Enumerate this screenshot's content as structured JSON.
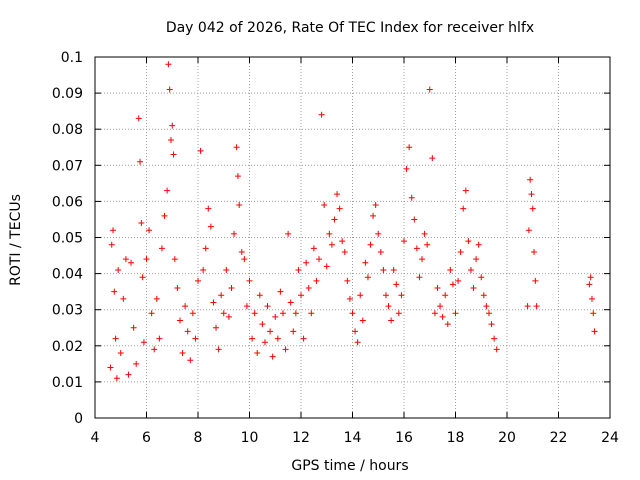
{
  "chart_data": {
    "type": "scatter",
    "title": "Day 042 of 2026, Rate Of TEC Index for receiver hlfx",
    "xlabel": "GPS time / hours",
    "ylabel": "ROTI / TECUs",
    "xlim": [
      4,
      24
    ],
    "ylim": [
      0,
      0.1
    ],
    "x_ticks": [
      4,
      6,
      8,
      10,
      12,
      14,
      16,
      18,
      20,
      22,
      24
    ],
    "x_tick_labels": [
      "4",
      "6",
      "8",
      "10",
      "12",
      "14",
      "16",
      "18",
      "20",
      "22",
      "24"
    ],
    "y_ticks": [
      0,
      0.01,
      0.02,
      0.03,
      0.04,
      0.05,
      0.06,
      0.07,
      0.08,
      0.09,
      0.1
    ],
    "y_tick_labels": [
      "0",
      "0.01",
      "0.02",
      "0.03",
      "0.04",
      "0.05",
      "0.06",
      "0.07",
      "0.08",
      "0.09",
      "0.1"
    ],
    "grid": true,
    "marker": "plus",
    "color": "#ff0000",
    "series": [
      {
        "x": [
          4.6,
          4.65,
          4.7,
          4.75,
          4.8,
          4.85,
          4.9,
          5.0,
          5.1,
          5.2,
          5.3,
          5.4,
          5.5,
          5.6,
          5.7,
          5.75,
          5.8,
          5.85,
          5.9,
          6.0,
          6.1,
          6.2,
          6.3,
          6.4,
          6.5,
          6.6,
          6.7,
          6.8,
          6.85,
          6.9,
          6.95,
          7.0,
          7.05,
          7.1,
          7.2,
          7.3,
          7.4,
          7.5,
          7.6,
          7.7,
          7.8,
          7.9,
          8.0,
          8.1,
          8.2,
          8.3,
          8.4,
          8.5,
          8.6,
          8.7,
          8.8,
          8.9,
          9.0,
          9.1,
          9.2,
          9.3,
          9.4,
          9.5,
          9.55,
          9.6,
          9.7,
          9.8,
          9.9,
          10.0,
          10.1,
          10.2,
          10.3,
          10.4,
          10.5,
          10.6,
          10.7,
          10.8,
          10.9,
          11.0,
          11.1,
          11.2,
          11.3,
          11.4,
          11.5,
          11.6,
          11.7,
          11.8,
          11.9,
          12.0,
          12.1,
          12.2,
          12.3,
          12.4,
          12.5,
          12.6,
          12.7,
          12.8,
          12.9,
          13.0,
          13.1,
          13.2,
          13.3,
          13.4,
          13.5,
          13.6,
          13.7,
          13.8,
          13.9,
          14.0,
          14.1,
          14.2,
          14.3,
          14.4,
          14.5,
          14.6,
          14.7,
          14.8,
          14.9,
          15.0,
          15.1,
          15.2,
          15.3,
          15.4,
          15.5,
          15.6,
          15.7,
          15.8,
          15.9,
          16.0,
          16.1,
          16.2,
          16.3,
          16.4,
          16.5,
          16.6,
          16.7,
          16.8,
          16.9,
          17.0,
          17.1,
          17.2,
          17.3,
          17.4,
          17.5,
          17.6,
          17.7,
          17.8,
          17.9,
          18.0,
          18.1,
          18.2,
          18.3,
          18.4,
          18.5,
          18.6,
          18.7,
          18.8,
          18.9,
          19.0,
          19.1,
          19.2,
          19.3,
          19.4,
          19.5,
          19.6,
          20.8,
          20.85,
          20.9,
          20.95,
          21.0,
          21.05,
          21.1,
          21.15,
          23.2,
          23.25,
          23.3,
          23.35,
          23.4
        ],
        "y": [
          0.014,
          0.048,
          0.052,
          0.035,
          0.022,
          0.011,
          0.041,
          0.018,
          0.033,
          0.044,
          0.012,
          0.043,
          0.025,
          0.015,
          0.083,
          0.071,
          0.054,
          0.039,
          0.021,
          0.044,
          0.052,
          0.029,
          0.019,
          0.033,
          0.022,
          0.047,
          0.056,
          0.063,
          0.098,
          0.091,
          0.077,
          0.081,
          0.073,
          0.044,
          0.036,
          0.027,
          0.018,
          0.031,
          0.024,
          0.016,
          0.029,
          0.022,
          0.038,
          0.074,
          0.041,
          0.047,
          0.058,
          0.053,
          0.032,
          0.025,
          0.019,
          0.034,
          0.029,
          0.041,
          0.028,
          0.036,
          0.051,
          0.075,
          0.067,
          0.059,
          0.046,
          0.044,
          0.031,
          0.038,
          0.022,
          0.029,
          0.018,
          0.034,
          0.026,
          0.021,
          0.031,
          0.024,
          0.017,
          0.028,
          0.022,
          0.035,
          0.029,
          0.019,
          0.051,
          0.032,
          0.024,
          0.029,
          0.041,
          0.034,
          0.022,
          0.043,
          0.036,
          0.029,
          0.047,
          0.038,
          0.044,
          0.084,
          0.059,
          0.042,
          0.051,
          0.048,
          0.055,
          0.062,
          0.058,
          0.049,
          0.046,
          0.038,
          0.033,
          0.029,
          0.024,
          0.021,
          0.034,
          0.027,
          0.043,
          0.039,
          0.048,
          0.056,
          0.059,
          0.051,
          0.046,
          0.041,
          0.034,
          0.031,
          0.027,
          0.041,
          0.037,
          0.029,
          0.034,
          0.049,
          0.069,
          0.075,
          0.061,
          0.055,
          0.047,
          0.039,
          0.044,
          0.051,
          0.048,
          0.091,
          0.072,
          0.029,
          0.036,
          0.031,
          0.028,
          0.034,
          0.026,
          0.041,
          0.037,
          0.029,
          0.038,
          0.046,
          0.058,
          0.063,
          0.049,
          0.041,
          0.036,
          0.044,
          0.048,
          0.039,
          0.034,
          0.031,
          0.029,
          0.026,
          0.022,
          0.019,
          0.031,
          0.052,
          0.066,
          0.062,
          0.058,
          0.046,
          0.038,
          0.031,
          0.037,
          0.039,
          0.033,
          0.029,
          0.024
        ]
      }
    ]
  }
}
